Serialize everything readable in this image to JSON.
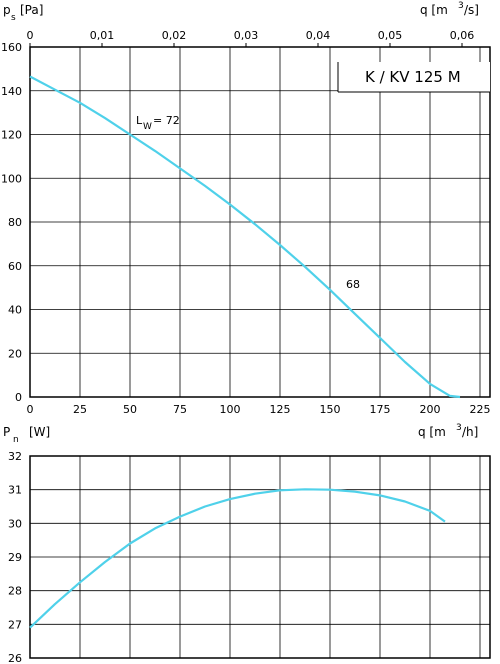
{
  "colors": {
    "curve": "#4fd1ea",
    "grid": "#000000",
    "frame": "#000000",
    "background": "#ffffff"
  },
  "chart_data": [
    {
      "type": "line",
      "name": "pressure",
      "title": "K / KV 125 M",
      "ylabel": {
        "main": "p",
        "sub": "s",
        "unit": "[Pa]"
      },
      "xlabel_top": {
        "main": "q [m",
        "sup": "3",
        "unit": "/s]"
      },
      "xlabel_bottom": {
        "main": "q [m",
        "sup": "3",
        "unit": "/h]"
      },
      "xlim": [
        0,
        230
      ],
      "ylim": [
        0,
        160
      ],
      "xticks_bottom": [
        0,
        25,
        50,
        75,
        100,
        125,
        150,
        175,
        200,
        225
      ],
      "xticks_bottom_labels": [
        "0",
        "25",
        "50",
        "75",
        "100",
        "125",
        "150",
        "175",
        "200",
        "225"
      ],
      "xticks_top_values": [
        0,
        0.01,
        0.02,
        0.03,
        0.04,
        0.05,
        0.06
      ],
      "xticks_top_labels": [
        "0",
        "0,01",
        "0,02",
        "0,03",
        "0,04",
        "0,05",
        "0,06"
      ],
      "yticks": [
        0,
        20,
        40,
        60,
        80,
        100,
        120,
        140,
        160
      ],
      "yticks_labels": [
        "0",
        "20",
        "40",
        "60",
        "80",
        "100",
        "120",
        "140",
        "160"
      ],
      "grid": true,
      "series": [
        {
          "x": [
            0,
            12.5,
            25,
            37.5,
            50,
            62.5,
            75,
            87.5,
            100,
            112.5,
            125,
            137.5,
            150,
            162.5,
            175,
            187.5,
            200,
            210,
            215
          ],
          "y": [
            146.5,
            140.5,
            134.5,
            127.5,
            120,
            112.5,
            104.5,
            96.5,
            88,
            79,
            69.5,
            59.5,
            49,
            38,
            27,
            16,
            6,
            0.5,
            0
          ]
        }
      ],
      "annotations": [
        {
          "text": "L",
          "sub": "W",
          "rest": " = 72",
          "x": 52,
          "y": 124
        },
        {
          "text": "68",
          "x": 155,
          "y": 50
        }
      ]
    },
    {
      "type": "line",
      "name": "power",
      "ylabel": {
        "main": "P",
        "sub": "n",
        "unit": "[W]"
      },
      "xlim": [
        0,
        230
      ],
      "ylim": [
        26,
        32
      ],
      "yticks": [
        26,
        27,
        28,
        29,
        30,
        31,
        32
      ],
      "yticks_labels": [
        "26",
        "27",
        "28",
        "29",
        "30",
        "31",
        "32"
      ],
      "xgrid": [
        25,
        50,
        75,
        100,
        125,
        150,
        175,
        200,
        225
      ],
      "grid": true,
      "series": [
        {
          "x": [
            0,
            12.5,
            25,
            37.5,
            50,
            62.5,
            75,
            87.5,
            100,
            112.5,
            125,
            137.5,
            150,
            162.5,
            175,
            187.5,
            200,
            207.5
          ],
          "y": [
            26.9,
            27.6,
            28.25,
            28.85,
            29.4,
            29.85,
            30.2,
            30.5,
            30.72,
            30.88,
            30.98,
            31.01,
            31.0,
            30.94,
            30.83,
            30.65,
            30.37,
            30.05
          ]
        }
      ]
    }
  ]
}
